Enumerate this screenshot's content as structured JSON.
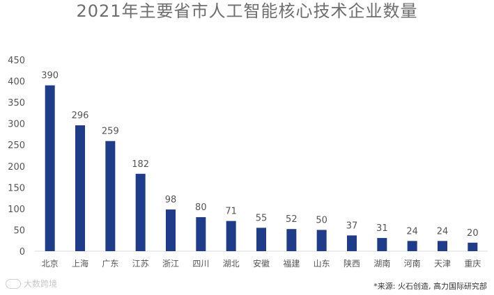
{
  "chart_data": {
    "type": "bar",
    "title": "2021年主要省市人工智能核心技术企业数量",
    "categories": [
      "北京",
      "上海",
      "广东",
      "江苏",
      "浙江",
      "四川",
      "湖北",
      "安徽",
      "福建",
      "山东",
      "陕西",
      "湖南",
      "河南",
      "天津",
      "重庆"
    ],
    "values": [
      390,
      296,
      259,
      182,
      98,
      80,
      71,
      55,
      52,
      50,
      37,
      31,
      24,
      24,
      20
    ],
    "ylim": [
      0,
      450
    ],
    "yticks": [
      0,
      50,
      100,
      150,
      200,
      250,
      300,
      350,
      400,
      450
    ],
    "xlabel": "",
    "ylabel": "",
    "grid": false,
    "data_labels": true,
    "bar_color": "#1f3c88"
  },
  "source": "*来源: 火石创造, 高力国际研究部",
  "watermark": "大数跨境"
}
